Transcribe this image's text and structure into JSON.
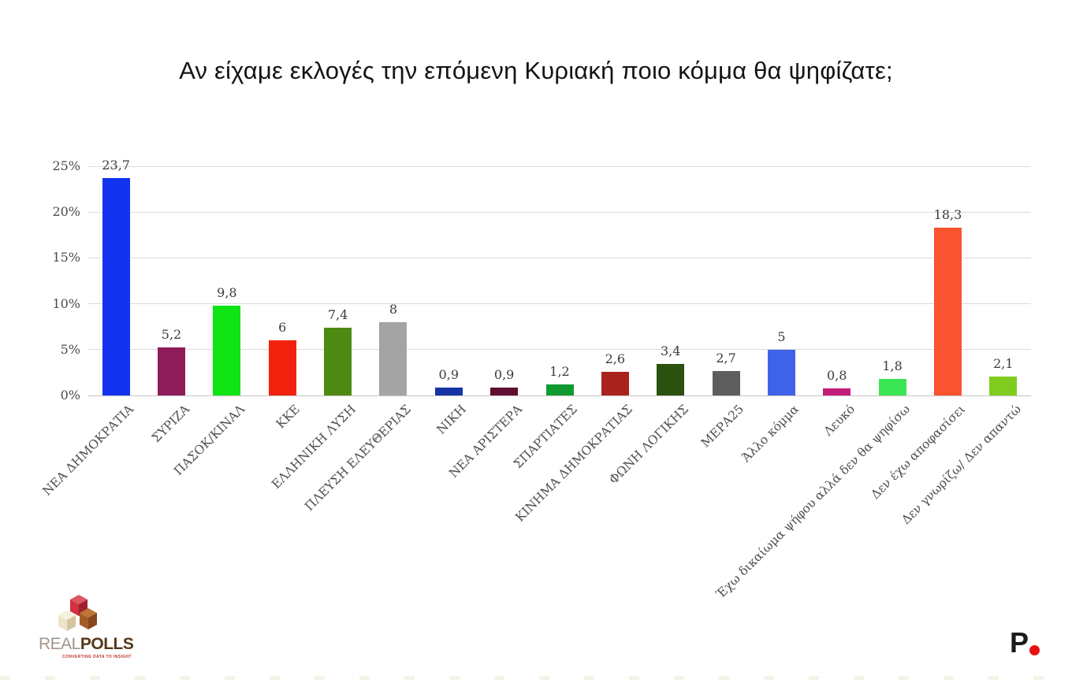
{
  "page": {
    "title": "Αν είχαμε εκλογές την επόμενη Κυριακή ποιο κόμμα θα ψηφίζατε;"
  },
  "chart_data": {
    "type": "bar",
    "title": "Αν είχαμε εκλογές την επόμενη Κυριακή ποιο κόμμα θα ψηφίζατε;",
    "xlabel": "",
    "ylabel": "",
    "ylim": [
      0,
      25
    ],
    "grid": true,
    "legend": "none",
    "yticks": [
      {
        "label": "0%",
        "value": 0
      },
      {
        "label": "5%",
        "value": 5
      },
      {
        "label": "10%",
        "value": 10
      },
      {
        "label": "15%",
        "value": 15
      },
      {
        "label": "20%",
        "value": 20
      },
      {
        "label": "25%",
        "value": 25
      }
    ],
    "categories": [
      "ΝΕΑ ΔΗΜΟΚΡΑΤΙΑ",
      "ΣΥΡΙΖΑ",
      "ΠΑΣΟΚ/ΚΙΝΑΛ",
      "ΚΚΕ",
      "ΕΛΛΗΝΙΚΗ ΛΥΣΗ",
      "ΠΛΕΥΣΗ ΕΛΕΥΘΕΡΙΑΣ",
      "ΝΙΚΗ",
      "ΝΕΑ ΑΡΙΣΤΕΡΑ",
      "ΣΠΑΡΤΙΑΤΕΣ",
      "ΚΙΝΗΜΑ ΔΗΜΟΚΡΑΤΙΑΣ",
      "ΦΩΝΗ ΛΟΓΙΚΗΣ",
      "ΜΕΡΑ25",
      "Άλλο κόμμα",
      "Λευκό",
      "Έχω δικαίωμα ψήφου αλλά δεν θα ψηφίσω",
      "Δεν έχω αποφασίσει",
      "Δεν γνωρίζω/ Δεν απαντώ"
    ],
    "values": [
      23.7,
      5.2,
      9.8,
      6,
      7.4,
      8,
      0.9,
      0.9,
      1.2,
      2.6,
      3.4,
      2.7,
      5,
      0.8,
      1.8,
      18.3,
      2.1
    ],
    "value_labels": [
      "23,7",
      "5,2",
      "9,8",
      "6",
      "7,4",
      "8",
      "0,9",
      "0,9",
      "1,2",
      "2,6",
      "3,4",
      "2,7",
      "5",
      "0,8",
      "1,8",
      "18,3",
      "2,1"
    ],
    "bar_colors": [
      "#1433ee",
      "#8e1c5a",
      "#10e414",
      "#f2230e",
      "#4e8a12",
      "#a4a4a4",
      "#1533a2",
      "#5f1031",
      "#0f9a30",
      "#a8231c",
      "#2c5210",
      "#5e5e5e",
      "#3f63e8",
      "#c31d7a",
      "#3ae554",
      "#f95330",
      "#80cc1e"
    ]
  },
  "colors": {
    "background": "#ffffff",
    "gridline": "#dadada",
    "baseline": "#c4c4c4",
    "axis_text": "#4a4a4a",
    "value_text": "#3a3a3a",
    "title_text": "#141414"
  },
  "footer": {
    "realpolls_logo": {
      "text_light": "REAL",
      "text_bold": "POLLS",
      "tagline": "CONVERTING DATA TO INSIGHT",
      "cube_red": "#d2303e",
      "cube_red_dark": "#9e2030",
      "cube_red_top": "#e05560",
      "cube_cream": "#ece3c8",
      "cube_cream_dark": "#d4c5a0",
      "cube_cream_top": "#f6f0df",
      "cube_brown": "#a55d28",
      "cube_brown_dark": "#84481d",
      "cube_brown_top": "#bd7434"
    },
    "p_logo": {
      "letter": "P",
      "letter_color": "#1b1b1d",
      "dot_color": "#e81010"
    }
  }
}
